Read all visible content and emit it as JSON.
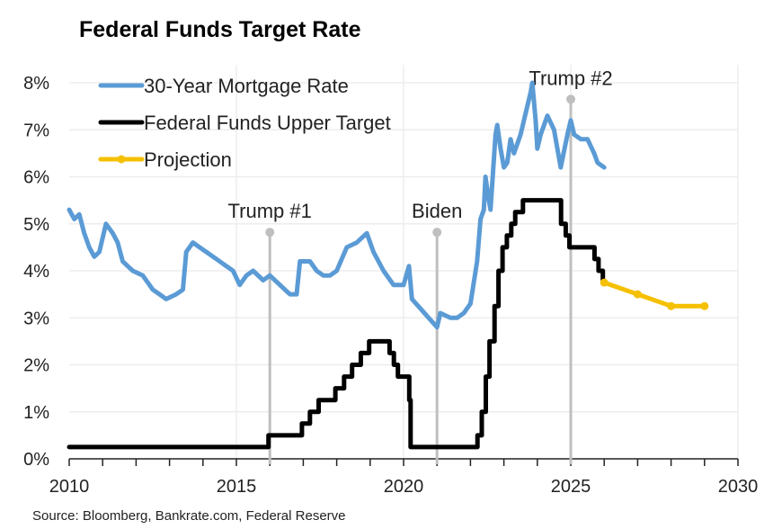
{
  "chart_data": {
    "type": "line",
    "title": "Federal Funds Target Rate",
    "source": "Source: Bloomberg, Bankrate.com, Federal Reserve",
    "xlim": [
      2010,
      2030
    ],
    "ylim": [
      0,
      8
    ],
    "xticks": [
      2010,
      2015,
      2020,
      2025,
      2030
    ],
    "xtick_labels": [
      "2010",
      "2015",
      "2020",
      "2025",
      "2030"
    ],
    "yticks": [
      0,
      1,
      2,
      3,
      4,
      5,
      6,
      7,
      8
    ],
    "ytick_labels": [
      "0%",
      "1%",
      "2%",
      "3%",
      "4%",
      "5%",
      "6%",
      "7%",
      "8%"
    ],
    "grid": true,
    "legend_placement": "top-left",
    "series": [
      {
        "name": "30-Year Mortgage Rate",
        "color": "#5B9BD5",
        "step": false,
        "x": [
          2010.0,
          2010.15,
          2010.3,
          2010.45,
          2010.6,
          2010.75,
          2010.9,
          2011.1,
          2011.3,
          2011.45,
          2011.6,
          2011.75,
          2011.9,
          2012.2,
          2012.5,
          2012.7,
          2012.9,
          2013.2,
          2013.4,
          2013.5,
          2013.7,
          2013.9,
          2014.1,
          2014.3,
          2014.5,
          2014.7,
          2014.9,
          2015.1,
          2015.3,
          2015.5,
          2015.8,
          2016.0,
          2016.3,
          2016.6,
          2016.8,
          2016.9,
          2017.2,
          2017.4,
          2017.6,
          2017.8,
          2018.0,
          2018.3,
          2018.6,
          2018.9,
          2019.1,
          2019.4,
          2019.7,
          2020.0,
          2020.16,
          2020.25,
          2020.5,
          2020.75,
          2021.0,
          2021.1,
          2021.4,
          2021.6,
          2021.8,
          2022.0,
          2022.2,
          2022.3,
          2022.4,
          2022.45,
          2022.55,
          2022.6,
          2022.75,
          2022.8,
          2022.9,
          2023.0,
          2023.1,
          2023.2,
          2023.3,
          2023.5,
          2023.6,
          2023.8,
          2023.85,
          2023.95,
          2024.0,
          2024.1,
          2024.3,
          2024.5,
          2024.7,
          2024.9,
          2025.0,
          2025.1,
          2025.3,
          2025.5,
          2025.7,
          2025.8,
          2026.0
        ],
        "y": [
          5.3,
          5.1,
          5.2,
          4.8,
          4.5,
          4.3,
          4.4,
          5.0,
          4.8,
          4.6,
          4.2,
          4.1,
          4.0,
          3.9,
          3.6,
          3.5,
          3.4,
          3.5,
          3.6,
          4.4,
          4.6,
          4.5,
          4.4,
          4.3,
          4.2,
          4.1,
          4.0,
          3.7,
          3.9,
          4.0,
          3.8,
          3.9,
          3.7,
          3.5,
          3.5,
          4.2,
          4.2,
          4.0,
          3.9,
          3.9,
          4.0,
          4.5,
          4.6,
          4.8,
          4.4,
          4.0,
          3.7,
          3.7,
          4.1,
          3.4,
          3.2,
          3.0,
          2.8,
          3.1,
          3.0,
          3.0,
          3.1,
          3.3,
          4.2,
          5.1,
          5.3,
          6.0,
          5.5,
          5.3,
          6.9,
          7.1,
          6.6,
          6.2,
          6.3,
          6.8,
          6.5,
          6.9,
          7.2,
          7.8,
          8.0,
          7.2,
          6.6,
          6.9,
          7.3,
          7.0,
          6.2,
          6.9,
          7.2,
          6.9,
          6.8,
          6.8,
          6.5,
          6.3,
          6.2
        ]
      },
      {
        "name": "Federal Funds Upper Target",
        "color": "#000000",
        "step": true,
        "x": [
          2010.0,
          2015.96,
          2016.96,
          2017.2,
          2017.46,
          2017.96,
          2018.22,
          2018.46,
          2018.72,
          2018.97,
          2019.58,
          2019.71,
          2019.83,
          2020.17,
          2020.21,
          2022.21,
          2022.34,
          2022.46,
          2022.57,
          2022.72,
          2022.84,
          2022.96,
          2023.09,
          2023.22,
          2023.34,
          2023.57,
          2024.71,
          2024.85,
          2024.96,
          2025.71,
          2025.83,
          2025.96
        ],
        "y": [
          0.25,
          0.5,
          0.75,
          1.0,
          1.25,
          1.5,
          1.75,
          2.0,
          2.25,
          2.5,
          2.25,
          2.0,
          1.75,
          1.25,
          0.25,
          0.5,
          1.0,
          1.75,
          2.5,
          3.25,
          4.0,
          4.5,
          4.75,
          5.0,
          5.25,
          5.5,
          5.0,
          4.75,
          4.5,
          4.25,
          4.0,
          3.75
        ]
      },
      {
        "name": "Projection",
        "color": "#F5C000",
        "step": false,
        "markers": true,
        "x": [
          2026.0,
          2027.0,
          2028.0,
          2029.0
        ],
        "y": [
          3.75,
          3.5,
          3.25,
          3.25
        ]
      }
    ],
    "annotations": [
      {
        "label": "Trump #1",
        "x": 2016.0,
        "y": 4.82
      },
      {
        "label": "Biden",
        "x": 2021.0,
        "y": 4.82
      },
      {
        "label": "Trump #2",
        "x": 2025.0,
        "y": 7.65
      }
    ],
    "annotation_color": "#BFBFBF"
  }
}
